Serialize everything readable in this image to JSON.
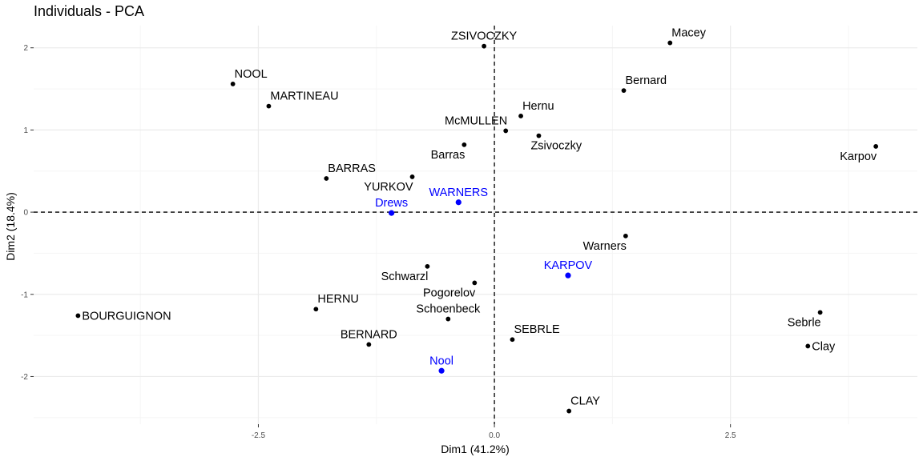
{
  "chart_data": {
    "type": "scatter",
    "title": "Individuals - PCA",
    "xlabel": "Dim1 (41.2%)",
    "ylabel": "Dim2 (18.4%)",
    "xlim": [
      -4.88,
      4.48
    ],
    "ylim": [
      -2.58,
      2.27
    ],
    "x_ticks": [
      {
        "value": -2.5,
        "label": "-2.5"
      },
      {
        "value": 0,
        "label": "0.0"
      },
      {
        "value": 2.5,
        "label": "2.5"
      }
    ],
    "y_ticks": [
      {
        "value": -2,
        "label": "-2"
      },
      {
        "value": -1,
        "label": "-1"
      },
      {
        "value": 0,
        "label": "0"
      },
      {
        "value": 1,
        "label": "1"
      },
      {
        "value": 2,
        "label": "2"
      }
    ],
    "reference_lines": {
      "x": 0,
      "y": 0
    },
    "grid": true,
    "colors": {
      "active": "#000000",
      "supplementary": "#0000ff",
      "grid_major": "#ebebeb",
      "grid_minor": "#f5f5f5"
    },
    "points": [
      {
        "label": "SEBRLE",
        "x": 0.19,
        "y": -1.55,
        "group": "active",
        "pos": "above-right"
      },
      {
        "label": "CLAY",
        "x": 0.79,
        "y": -2.42,
        "group": "active",
        "pos": "above-right"
      },
      {
        "label": "BERNARD",
        "x": -1.33,
        "y": -1.61,
        "group": "active",
        "pos": "above"
      },
      {
        "label": "YURKOV",
        "x": -0.87,
        "y": 0.43,
        "group": "active",
        "pos": "below-left"
      },
      {
        "label": "ZSIVOCZKY",
        "x": -0.11,
        "y": 2.02,
        "group": "active",
        "pos": "above"
      },
      {
        "label": "McMULLEN",
        "x": 0.12,
        "y": 0.99,
        "group": "active",
        "pos": "above-left"
      },
      {
        "label": "MARTINEAU",
        "x": -2.39,
        "y": 1.29,
        "group": "active",
        "pos": "above-right"
      },
      {
        "label": "HERNU",
        "x": -1.89,
        "y": -1.18,
        "group": "active",
        "pos": "above-right"
      },
      {
        "label": "BARRAS",
        "x": -1.78,
        "y": 0.41,
        "group": "active",
        "pos": "above-right"
      },
      {
        "label": "NOOL",
        "x": -2.77,
        "y": 1.56,
        "group": "active",
        "pos": "above-right"
      },
      {
        "label": "BOURGUIGNON",
        "x": -4.41,
        "y": -1.26,
        "group": "active",
        "pos": "right"
      },
      {
        "label": "Sebrle",
        "x": 3.45,
        "y": -1.22,
        "group": "active",
        "pos": "below-left"
      },
      {
        "label": "Clay",
        "x": 3.32,
        "y": -1.63,
        "group": "active",
        "pos": "right"
      },
      {
        "label": "Karpov",
        "x": 4.04,
        "y": 0.8,
        "group": "active",
        "pos": "below-left"
      },
      {
        "label": "Macey",
        "x": 1.86,
        "y": 2.06,
        "group": "active",
        "pos": "above-right"
      },
      {
        "label": "Warners",
        "x": 1.39,
        "y": -0.29,
        "group": "active",
        "pos": "below-left"
      },
      {
        "label": "Zsivoczky",
        "x": 0.47,
        "y": 0.93,
        "group": "active",
        "pos": "below-right"
      },
      {
        "label": "Hernu",
        "x": 0.28,
        "y": 1.17,
        "group": "active",
        "pos": "above-right"
      },
      {
        "label": "Bernard",
        "x": 1.37,
        "y": 1.48,
        "group": "active",
        "pos": "above-right"
      },
      {
        "label": "Schwarzl",
        "x": -0.71,
        "y": -0.66,
        "group": "active",
        "pos": "below-left"
      },
      {
        "label": "Pogorelov",
        "x": -0.21,
        "y": -0.86,
        "group": "active",
        "pos": "below-left"
      },
      {
        "label": "Schoenbeck",
        "x": -0.49,
        "y": -1.3,
        "group": "active",
        "pos": "above"
      },
      {
        "label": "Barras",
        "x": -0.32,
        "y": 0.82,
        "group": "active",
        "pos": "below-left"
      },
      {
        "label": "KARPOV",
        "x": 0.78,
        "y": -0.77,
        "group": "supplementary",
        "pos": "above"
      },
      {
        "label": "WARNERS",
        "x": -0.38,
        "y": 0.12,
        "group": "supplementary",
        "pos": "above"
      },
      {
        "label": "Nool",
        "x": -0.56,
        "y": -1.93,
        "group": "supplementary",
        "pos": "above"
      },
      {
        "label": "Drews",
        "x": -1.09,
        "y": -0.01,
        "group": "supplementary",
        "pos": "above"
      }
    ]
  }
}
